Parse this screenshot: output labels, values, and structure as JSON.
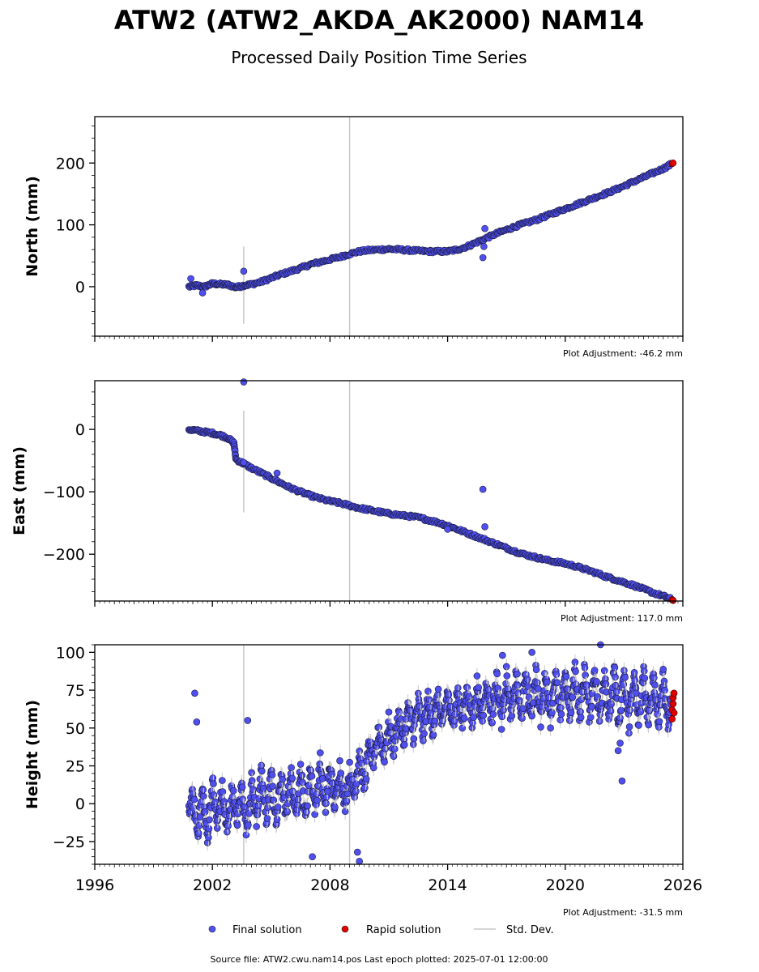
{
  "chart_data": {
    "type": "scatter",
    "title": "ATW2 (ATW2_AKDA_AK2000) NAM14",
    "subtitle": "Processed Daily Position Time Series",
    "xlim": [
      1996,
      2026
    ],
    "xticks": [
      1996,
      2002,
      2008,
      2014,
      2020,
      2026
    ],
    "panels": [
      {
        "ylabel": "North (mm)",
        "ylim": [
          -80,
          275
        ],
        "yticks": [
          0,
          100,
          200
        ],
        "adjustment": "Plot Adjustment: -46.2 mm",
        "final_series": [
          [
            2000.8,
            0
          ],
          [
            2001.2,
            2
          ],
          [
            2001.6,
            0
          ],
          [
            2002.0,
            5
          ],
          [
            2002.4,
            4
          ],
          [
            2002.8,
            3
          ],
          [
            2003.2,
            -1
          ],
          [
            2003.6,
            2
          ],
          [
            2004.0,
            4
          ],
          [
            2004.5,
            8
          ],
          [
            2005.0,
            14
          ],
          [
            2005.5,
            20
          ],
          [
            2006.0,
            25
          ],
          [
            2006.5,
            30
          ],
          [
            2007.0,
            36
          ],
          [
            2007.5,
            40
          ],
          [
            2008.0,
            44
          ],
          [
            2008.5,
            48
          ],
          [
            2009.0,
            53
          ],
          [
            2009.5,
            57
          ],
          [
            2010.0,
            59
          ],
          [
            2010.5,
            60
          ],
          [
            2011.0,
            61
          ],
          [
            2011.5,
            60
          ],
          [
            2012.0,
            59
          ],
          [
            2012.5,
            58
          ],
          [
            2013.0,
            57
          ],
          [
            2013.5,
            57
          ],
          [
            2014.0,
            57
          ],
          [
            2014.5,
            60
          ],
          [
            2015.0,
            65
          ],
          [
            2015.5,
            72
          ],
          [
            2016.0,
            79
          ],
          [
            2016.5,
            86
          ],
          [
            2017.0,
            92
          ],
          [
            2017.5,
            98
          ],
          [
            2018.0,
            103
          ],
          [
            2018.5,
            108
          ],
          [
            2019.0,
            114
          ],
          [
            2019.5,
            120
          ],
          [
            2020.0,
            126
          ],
          [
            2020.5,
            132
          ],
          [
            2021.0,
            138
          ],
          [
            2021.5,
            144
          ],
          [
            2022.0,
            150
          ],
          [
            2022.5,
            156
          ],
          [
            2023.0,
            163
          ],
          [
            2023.5,
            170
          ],
          [
            2024.0,
            177
          ],
          [
            2024.5,
            184
          ],
          [
            2025.0,
            191
          ],
          [
            2025.4,
            198
          ]
        ],
        "outliers": [
          [
            2000.9,
            13
          ],
          [
            2001.5,
            -10
          ],
          [
            2003.6,
            25
          ],
          [
            2015.8,
            47
          ],
          [
            2015.9,
            94
          ],
          [
            2015.85,
            65
          ]
        ],
        "rapid_series": [
          [
            2025.45,
            199
          ],
          [
            2025.5,
            200
          ]
        ],
        "stddev_spikes": [
          [
            2003.6,
            -60,
            65
          ],
          [
            2009.0,
            -80,
            275
          ]
        ]
      },
      {
        "ylabel": "East (mm)",
        "ylim": [
          -275,
          78
        ],
        "yticks": [
          0,
          -100,
          -200
        ],
        "adjustment": "Plot Adjustment: 117.0 mm",
        "final_series": [
          [
            2000.8,
            0
          ],
          [
            2001.2,
            -2
          ],
          [
            2001.6,
            -4
          ],
          [
            2002.0,
            -6
          ],
          [
            2002.4,
            -9
          ],
          [
            2002.8,
            -14
          ],
          [
            2003.1,
            -22
          ],
          [
            2003.2,
            -48
          ],
          [
            2003.6,
            -55
          ],
          [
            2004.0,
            -62
          ],
          [
            2004.5,
            -70
          ],
          [
            2005.0,
            -78
          ],
          [
            2005.5,
            -86
          ],
          [
            2006.0,
            -94
          ],
          [
            2006.5,
            -100
          ],
          [
            2007.0,
            -106
          ],
          [
            2007.5,
            -111
          ],
          [
            2008.0,
            -115
          ],
          [
            2008.5,
            -118
          ],
          [
            2009.0,
            -122
          ],
          [
            2009.5,
            -126
          ],
          [
            2010.0,
            -129
          ],
          [
            2010.5,
            -132
          ],
          [
            2011.0,
            -135
          ],
          [
            2011.5,
            -137
          ],
          [
            2012.0,
            -139
          ],
          [
            2012.5,
            -141
          ],
          [
            2013.0,
            -145
          ],
          [
            2013.5,
            -149
          ],
          [
            2014.0,
            -154
          ],
          [
            2014.5,
            -160
          ],
          [
            2015.0,
            -166
          ],
          [
            2015.5,
            -172
          ],
          [
            2016.0,
            -178
          ],
          [
            2016.5,
            -184
          ],
          [
            2017.0,
            -190
          ],
          [
            2017.5,
            -196
          ],
          [
            2018.0,
            -201
          ],
          [
            2018.5,
            -205
          ],
          [
            2019.0,
            -209
          ],
          [
            2019.5,
            -212
          ],
          [
            2020.0,
            -215
          ],
          [
            2020.5,
            -219
          ],
          [
            2021.0,
            -224
          ],
          [
            2021.5,
            -229
          ],
          [
            2022.0,
            -235
          ],
          [
            2022.5,
            -240
          ],
          [
            2023.0,
            -245
          ],
          [
            2023.5,
            -250
          ],
          [
            2024.0,
            -256
          ],
          [
            2024.5,
            -262
          ],
          [
            2025.0,
            -267
          ],
          [
            2025.4,
            -272
          ]
        ],
        "outliers": [
          [
            2003.6,
            76
          ],
          [
            2003.6,
            -53
          ],
          [
            2005.3,
            -70
          ],
          [
            2015.8,
            -96
          ],
          [
            2015.9,
            -156
          ],
          [
            2014.0,
            -160
          ]
        ],
        "rapid_series": [
          [
            2025.45,
            -273
          ],
          [
            2025.5,
            -274
          ]
        ],
        "stddev_spikes": [
          [
            2003.6,
            -133,
            30
          ],
          [
            2009.0,
            -275,
            78
          ]
        ]
      },
      {
        "ylabel": "Height (mm)",
        "ylim": [
          -40,
          105
        ],
        "yticks": [
          -25,
          0,
          25,
          50,
          75,
          100
        ],
        "adjustment": "Plot Adjustment: -31.5 mm",
        "final_series": [
          [
            2000.8,
            -5
          ],
          [
            2001.0,
            5
          ],
          [
            2001.25,
            -20
          ],
          [
            2001.5,
            10
          ],
          [
            2001.75,
            -25
          ],
          [
            2002.0,
            15
          ],
          [
            2002.25,
            -15
          ],
          [
            2002.5,
            10
          ],
          [
            2002.75,
            -20
          ],
          [
            2003.0,
            10
          ],
          [
            2003.25,
            -12
          ],
          [
            2003.5,
            12
          ],
          [
            2003.75,
            -18
          ],
          [
            2004.0,
            15
          ],
          [
            2004.25,
            -10
          ],
          [
            2004.5,
            20
          ],
          [
            2004.75,
            -12
          ],
          [
            2005.0,
            22
          ],
          [
            2005.25,
            -15
          ],
          [
            2005.5,
            20
          ],
          [
            2005.75,
            -10
          ],
          [
            2006.0,
            22
          ],
          [
            2006.25,
            -8
          ],
          [
            2006.5,
            24
          ],
          [
            2006.75,
            -10
          ],
          [
            2007.0,
            25
          ],
          [
            2007.25,
            -5
          ],
          [
            2007.5,
            28
          ],
          [
            2007.75,
            -5
          ],
          [
            2008.0,
            26
          ],
          [
            2008.25,
            -3
          ],
          [
            2008.5,
            25
          ],
          [
            2008.75,
            -2
          ],
          [
            2009.0,
            22
          ],
          [
            2009.25,
            5
          ],
          [
            2009.5,
            35
          ],
          [
            2009.75,
            10
          ],
          [
            2010.0,
            40
          ],
          [
            2010.25,
            25
          ],
          [
            2010.5,
            50
          ],
          [
            2010.75,
            30
          ],
          [
            2011.0,
            55
          ],
          [
            2011.25,
            35
          ],
          [
            2011.5,
            60
          ],
          [
            2011.75,
            40
          ],
          [
            2012.0,
            65
          ],
          [
            2012.25,
            45
          ],
          [
            2012.5,
            68
          ],
          [
            2012.75,
            45
          ],
          [
            2013.0,
            70
          ],
          [
            2013.25,
            48
          ],
          [
            2013.5,
            72
          ],
          [
            2013.75,
            50
          ],
          [
            2014.0,
            75
          ],
          [
            2014.25,
            50
          ],
          [
            2014.5,
            76
          ],
          [
            2014.75,
            52
          ],
          [
            2015.0,
            78
          ],
          [
            2015.25,
            52
          ],
          [
            2015.5,
            80
          ],
          [
            2015.75,
            54
          ],
          [
            2016.0,
            82
          ],
          [
            2016.25,
            55
          ],
          [
            2016.5,
            84
          ],
          [
            2016.75,
            55
          ],
          [
            2017.0,
            85
          ],
          [
            2017.25,
            56
          ],
          [
            2017.5,
            86
          ],
          [
            2017.75,
            55
          ],
          [
            2018.0,
            86
          ],
          [
            2018.25,
            56
          ],
          [
            2018.5,
            88
          ],
          [
            2018.75,
            55
          ],
          [
            2019.0,
            87
          ],
          [
            2019.25,
            56
          ],
          [
            2019.5,
            88
          ],
          [
            2019.75,
            55
          ],
          [
            2020.0,
            88
          ],
          [
            2020.25,
            56
          ],
          [
            2020.5,
            90
          ],
          [
            2020.75,
            56
          ],
          [
            2021.0,
            90
          ],
          [
            2021.25,
            56
          ],
          [
            2021.5,
            90
          ],
          [
            2021.75,
            55
          ],
          [
            2022.0,
            88
          ],
          [
            2022.25,
            55
          ],
          [
            2022.5,
            88
          ],
          [
            2022.75,
            50
          ],
          [
            2023.0,
            86
          ],
          [
            2023.25,
            52
          ],
          [
            2023.5,
            86
          ],
          [
            2023.75,
            52
          ],
          [
            2024.0,
            86
          ],
          [
            2024.25,
            52
          ],
          [
            2024.5,
            86
          ],
          [
            2024.75,
            52
          ],
          [
            2025.0,
            86
          ],
          [
            2025.25,
            52
          ],
          [
            2025.4,
            70
          ]
        ],
        "outliers": [
          [
            2001.1,
            73
          ],
          [
            2001.2,
            54
          ],
          [
            2003.8,
            55
          ],
          [
            2007.1,
            -35
          ],
          [
            2009.4,
            -32
          ],
          [
            2009.5,
            -38
          ],
          [
            2022.8,
            40
          ],
          [
            2022.9,
            15
          ],
          [
            2022.7,
            35
          ],
          [
            2018.3,
            100
          ],
          [
            2016.8,
            98
          ],
          [
            2021.8,
            105
          ]
        ],
        "rapid_series": [
          [
            2025.45,
            56
          ],
          [
            2025.45,
            62
          ],
          [
            2025.5,
            66
          ],
          [
            2025.5,
            70
          ],
          [
            2025.55,
            73
          ],
          [
            2025.55,
            60
          ]
        ],
        "stddev_spikes": [
          [
            2003.6,
            -40,
            105
          ],
          [
            2009.0,
            -40,
            105
          ]
        ]
      }
    ],
    "legend": {
      "placement": "bottom-center",
      "final_label": "Final solution",
      "rapid_label": "Rapid solution",
      "std_label": "Std. Dev.",
      "final_color": "#4f4ff0",
      "rapid_color": "#e00000",
      "std_color": "#c8c8c8"
    },
    "source": "Source file: ATW2.cwu.nam14.pos  Last epoch plotted: 2025-07-01 12:00:00"
  }
}
